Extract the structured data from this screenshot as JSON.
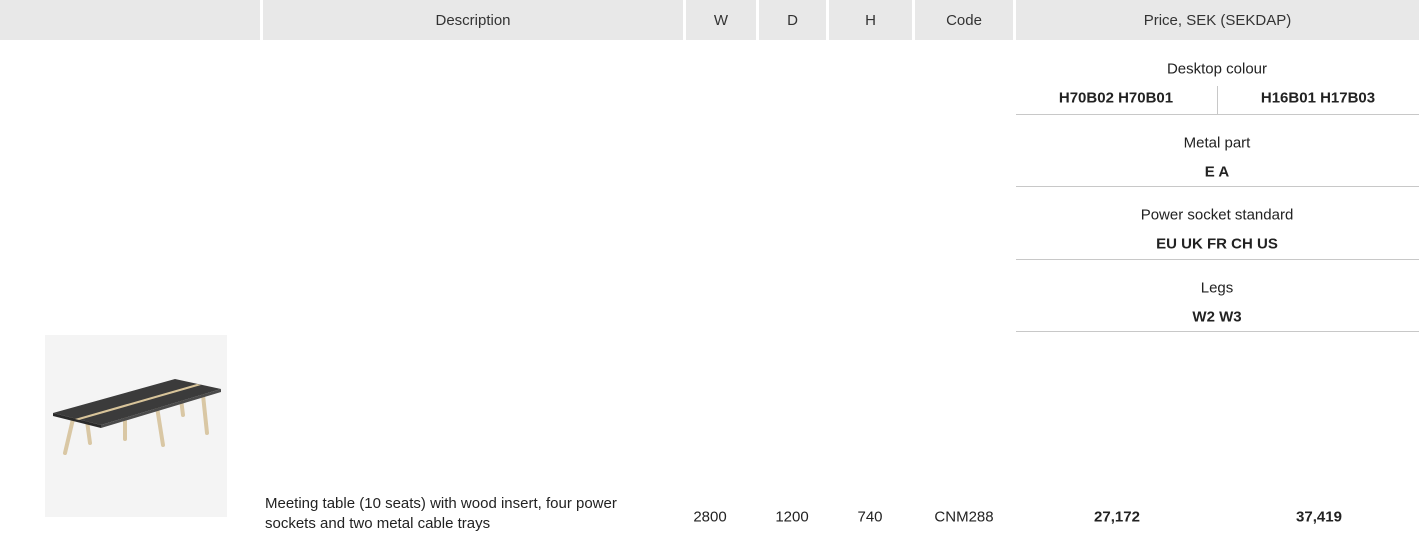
{
  "header": {
    "columns": [
      "Description",
      "W",
      "D",
      "H",
      "Code",
      "Price, SEK (SEKDAP)"
    ]
  },
  "options": [
    {
      "label": "Desktop colour",
      "values": [
        "H70B02 H70B01",
        "H16B01 H17B03"
      ]
    },
    {
      "label": "Metal part",
      "values": [
        "E A"
      ]
    },
    {
      "label": "Power socket standard",
      "values": [
        "EU UK FR CH US"
      ]
    },
    {
      "label": "Legs",
      "values": [
        "W2 W3"
      ]
    }
  ],
  "product": {
    "description": "Meeting table (10 seats) with wood insert, four power sockets and two metal cable trays",
    "w": "2800",
    "d": "1200",
    "h": "740",
    "code": "CNM288",
    "prices": [
      "27,172",
      "37,419"
    ]
  }
}
